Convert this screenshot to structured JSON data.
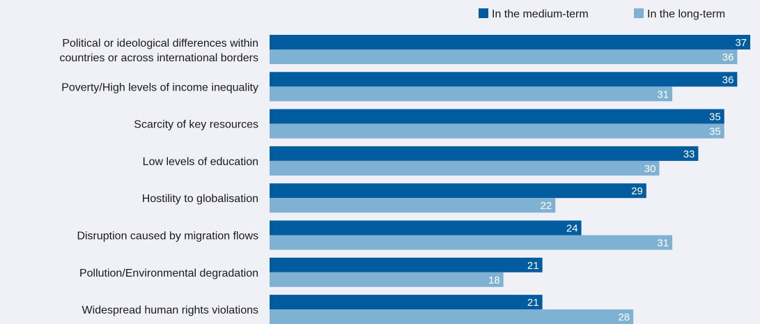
{
  "chart_data": {
    "type": "bar",
    "orientation": "horizontal",
    "categories": [
      [
        "Political or ideological differences within",
        "countries or across international borders"
      ],
      [
        "Poverty/High levels of income inequality"
      ],
      [
        "Scarcity of key resources"
      ],
      [
        "Low levels of education"
      ],
      [
        "Hostility to globalisation"
      ],
      [
        "Disruption caused by migration flows"
      ],
      [
        "Pollution/Environmental degradation"
      ],
      [
        "Widespread human rights violations"
      ]
    ],
    "series": [
      {
        "name": "In the medium-term",
        "color": "#005c9e",
        "values": [
          37,
          36,
          35,
          33,
          29,
          24,
          21,
          21
        ]
      },
      {
        "name": "In the long-term",
        "color": "#7fb2d2",
        "values": [
          36,
          31,
          35,
          30,
          22,
          31,
          18,
          28
        ]
      }
    ],
    "xlim": [
      0,
      37
    ],
    "grid": false,
    "legend_position": "top-right",
    "data_labels": true
  }
}
